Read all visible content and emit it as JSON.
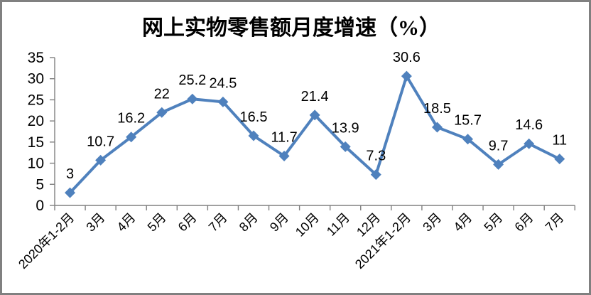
{
  "frame": {
    "background": "#ffffff",
    "border_color": "#808080"
  },
  "chart_data": {
    "type": "line",
    "title": "网上实物零售额月度增速（%）",
    "categories": [
      "2020年1-2月",
      "3月",
      "4月",
      "5月",
      "6月",
      "7月",
      "8月",
      "9月",
      "10月",
      "11月",
      "12月",
      "2021年1-2月",
      "3月",
      "4月",
      "5月",
      "6月",
      "7月"
    ],
    "values": [
      3,
      10.7,
      16.2,
      22,
      25.2,
      24.5,
      16.5,
      11.7,
      21.4,
      13.9,
      7.3,
      30.6,
      18.5,
      15.7,
      9.7,
      14.6,
      11
    ],
    "xlabel": "",
    "ylabel": "",
    "ylim": [
      0,
      35
    ],
    "y_ticks": [
      0,
      5,
      10,
      15,
      20,
      25,
      30,
      35
    ],
    "grid": false,
    "legend": "none",
    "show_point_labels": true,
    "x_tick_rotation_deg": -45,
    "line_color": "#4f81bd",
    "marker": "diamond",
    "marker_color": "#4f81bd",
    "axis_color": "#808080",
    "text_color": "#000000"
  }
}
